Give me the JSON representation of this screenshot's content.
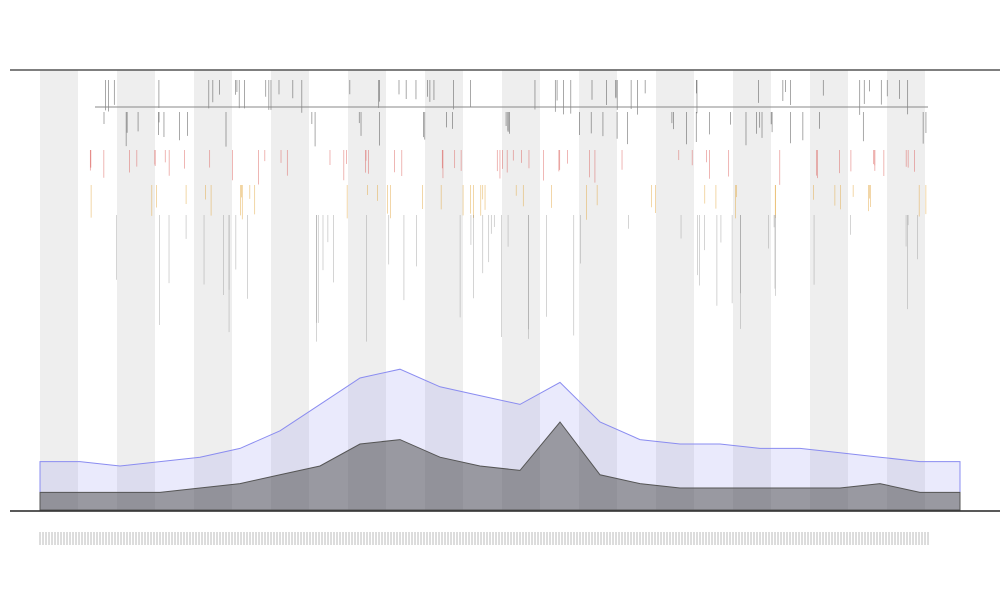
{
  "chart_data": {
    "type": "area",
    "categories": [
      null,
      null,
      null,
      null,
      null,
      null,
      null,
      null,
      null,
      null,
      null,
      null,
      null,
      null,
      null,
      null,
      null,
      null,
      null,
      null,
      null,
      null,
      null,
      null
    ],
    "series": [
      {
        "color": "#8a8cf0",
        "values": [
          11,
          11,
          10,
          11,
          12,
          14,
          18,
          24,
          30,
          32,
          28,
          26,
          24,
          29,
          20,
          16,
          15,
          15,
          14,
          14,
          13,
          12,
          11,
          11
        ]
      },
      {
        "color": "#555555",
        "values": [
          4,
          4,
          4,
          4,
          5,
          6,
          8,
          10,
          15,
          16,
          12,
          10,
          9,
          20,
          8,
          6,
          5,
          5,
          5,
          5,
          5,
          6,
          4,
          4
        ]
      }
    ],
    "ylim": [
      0,
      100
    ]
  }
}
